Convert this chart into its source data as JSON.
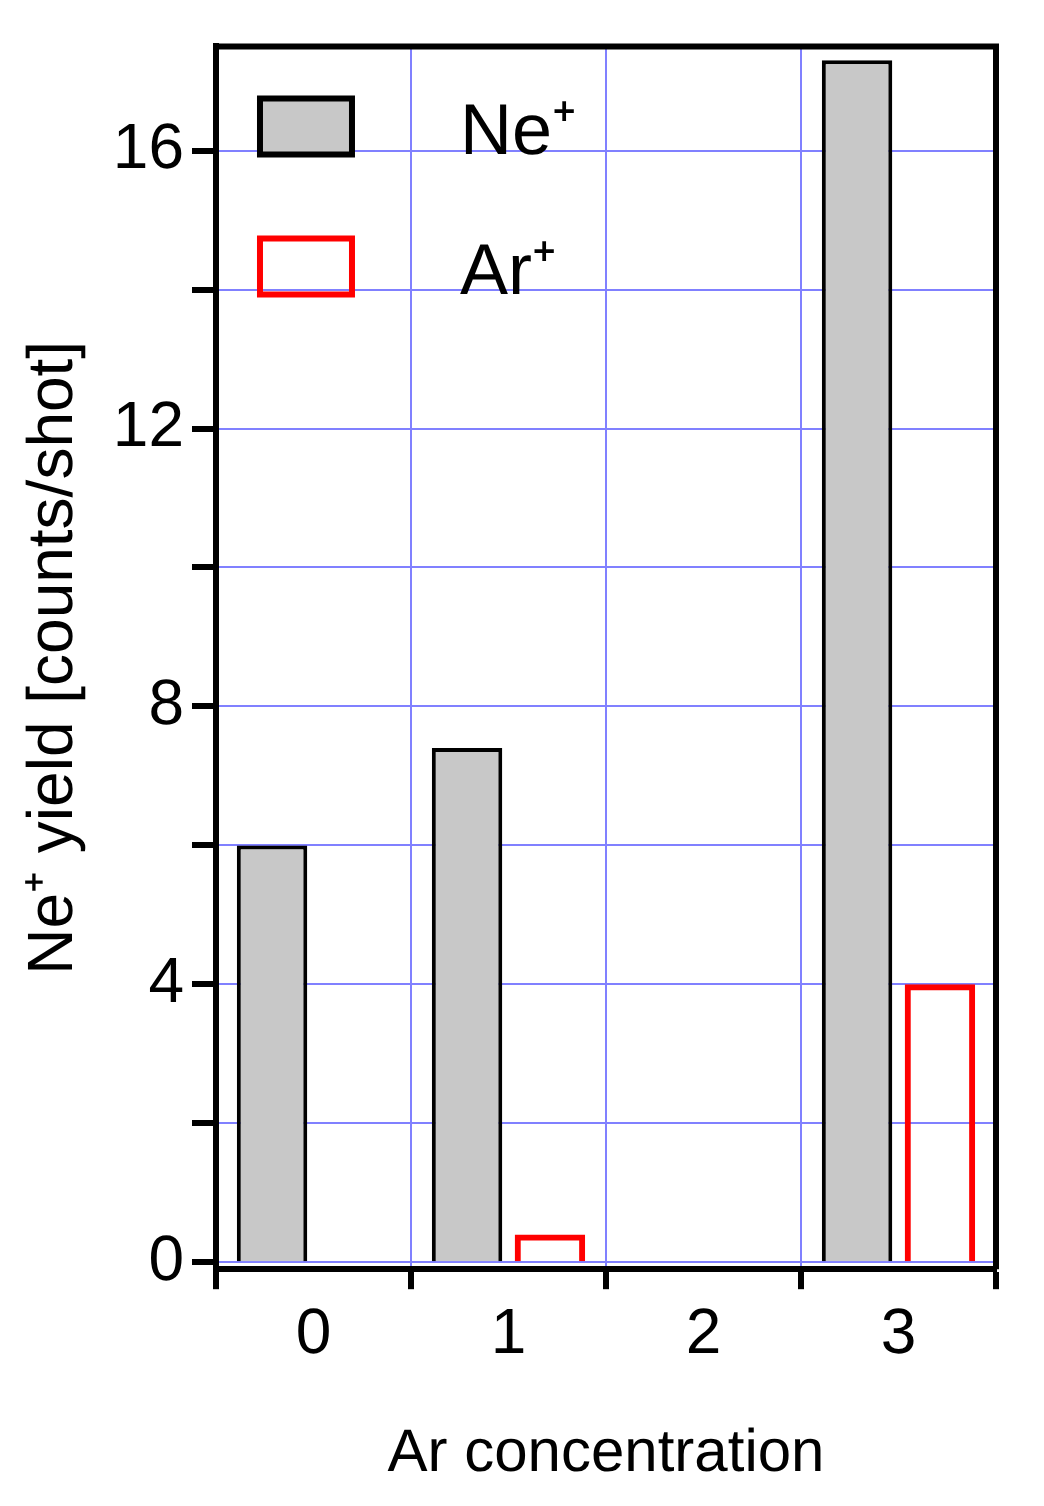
{
  "chart_data": {
    "type": "bar",
    "xlabel": "Ar concentration",
    "ylabel": "Ne⁺ yield [counts/shot]",
    "categories": [
      "0",
      "1",
      "2",
      "3"
    ],
    "series": [
      {
        "name": "Ne⁺",
        "color": "#c8c8c8",
        "values": [
          6.0,
          7.4,
          null,
          17.3
        ]
      },
      {
        "name": "Ar⁺",
        "color": "#ff0000",
        "values": [
          null,
          0.4,
          null,
          4.0
        ]
      }
    ],
    "ylim": [
      -0.1,
      17.5
    ],
    "yticks": [
      0,
      {
        "value": 2,
        "label": null
      },
      4,
      {
        "value": 6,
        "label": null
      },
      8,
      {
        "value": 10,
        "label": null
      },
      12,
      {
        "value": 14,
        "label": null
      },
      16
    ],
    "grid": true,
    "legend": "top left"
  }
}
